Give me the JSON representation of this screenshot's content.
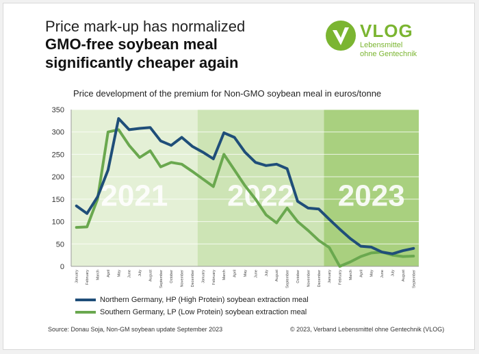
{
  "header": {
    "line1": "Price mark-up has normalized",
    "line2": "GMO-free soybean meal",
    "line3": "significantly cheaper again"
  },
  "logo": {
    "word": "VLOG",
    "sub1": "Lebensmittel",
    "sub2": "ohne Gentechnik",
    "color": "#7bb531"
  },
  "chart_data": {
    "type": "line",
    "title": "Price development of the premium for Non-GMO soybean meal in euros/tonne",
    "ylim": [
      0,
      350
    ],
    "yticks": [
      0,
      50,
      100,
      150,
      200,
      250,
      300,
      350
    ],
    "grid": true,
    "categories": [
      "January",
      "February",
      "March",
      "April",
      "May",
      "June",
      "July",
      "August",
      "September",
      "October",
      "November",
      "December",
      "January",
      "February",
      "March",
      "April",
      "May",
      "June",
      "July",
      "August",
      "September",
      "October",
      "November",
      "December",
      "January",
      "February",
      "March",
      "April",
      "May",
      "June",
      "July",
      "August",
      "September"
    ],
    "periods": [
      {
        "label": "2021",
        "start": 0,
        "end": 11,
        "color": "#e4f0d6"
      },
      {
        "label": "2022",
        "start": 12,
        "end": 23,
        "color": "#cde4b5"
      },
      {
        "label": "2023",
        "start": 24,
        "end": 32,
        "color": "#a9d07f"
      }
    ],
    "series": [
      {
        "name": "Northern Germany, HP (High Protein) soybean extraction meal",
        "color": "#1f4e79",
        "values": [
          135,
          118,
          155,
          215,
          330,
          305,
          308,
          310,
          280,
          270,
          288,
          268,
          255,
          240,
          298,
          288,
          255,
          232,
          225,
          228,
          218,
          145,
          130,
          128,
          105,
          83,
          62,
          45,
          43,
          32,
          28,
          35,
          40
        ]
      },
      {
        "name": "Southern Germany, LP (Low Protein) soybean extraction meal",
        "color": "#6aa84f",
        "values": [
          87,
          88,
          150,
          300,
          305,
          270,
          243,
          258,
          222,
          232,
          228,
          212,
          195,
          178,
          250,
          215,
          180,
          150,
          115,
          97,
          130,
          100,
          80,
          58,
          42,
          0,
          10,
          22,
          30,
          32,
          25,
          22,
          23
        ]
      }
    ]
  },
  "footer": {
    "source": "Source: Donau Soja, Non-GM soybean update September 2023",
    "copyright": "© 2023, Verband Lebensmittel ohne Gentechnik (VLOG)"
  }
}
